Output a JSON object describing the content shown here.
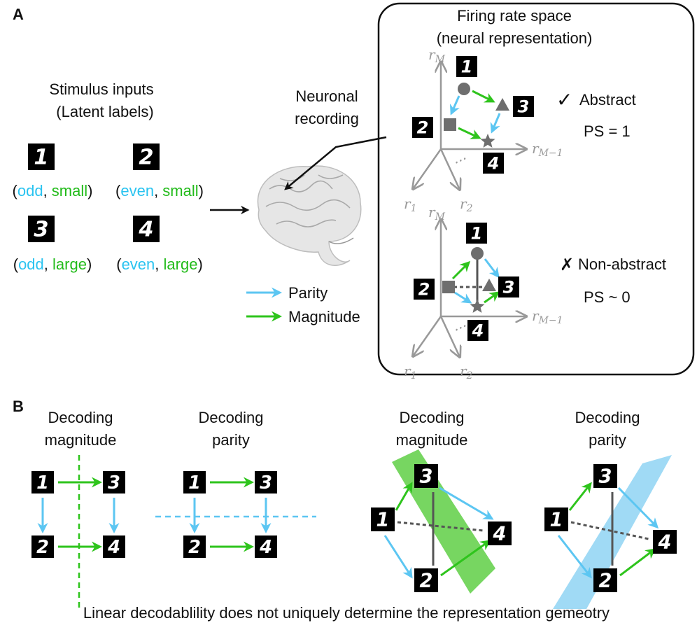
{
  "panel_labels": {
    "a": "A",
    "b": "B"
  },
  "stimulus": {
    "title_line1": "Stimulus inputs",
    "title_line2": "(Latent labels)",
    "digits": [
      "1",
      "2",
      "3",
      "4"
    ],
    "labels": [
      {
        "parity": "odd",
        "magnitude": "small"
      },
      {
        "parity": "even",
        "magnitude": "small"
      },
      {
        "parity": "odd",
        "magnitude": "large"
      },
      {
        "parity": "even",
        "magnitude": "large"
      }
    ]
  },
  "recording": {
    "line1": "Neuronal",
    "line2": "recording"
  },
  "legend": {
    "parity": "Parity",
    "magnitude": "Magnitude"
  },
  "firing_space": {
    "title_line1": "Firing rate space",
    "title_line2": "(neural representation)",
    "axes": {
      "rM": "r",
      "rM_sub": "M",
      "rM1": "r",
      "rM1_sub": "M−1",
      "r1": "r",
      "r1_sub": "1",
      "r2": "r",
      "r2_sub": "2",
      "dots": "..."
    },
    "abstract": {
      "mark": "✓",
      "label": "Abstract",
      "ps": "PS = 1"
    },
    "non_abstract": {
      "mark": "✗",
      "label": "Non-abstract",
      "ps": "PS ~ 0"
    }
  },
  "panel_b": {
    "titles": [
      {
        "line1": "Decoding",
        "line2": "magnitude"
      },
      {
        "line1": "Decoding",
        "line2": "parity"
      },
      {
        "line1": "Decoding",
        "line2": "magnitude"
      },
      {
        "line1": "Decoding",
        "line2": "parity"
      }
    ],
    "caption": "Linear decodablility does not uniquely determine the representation gemeotry"
  },
  "colors": {
    "parity": "#5cc6f2",
    "magnitude": "#2ec41c",
    "marker": "#6e6e6e",
    "axis": "#999999"
  }
}
